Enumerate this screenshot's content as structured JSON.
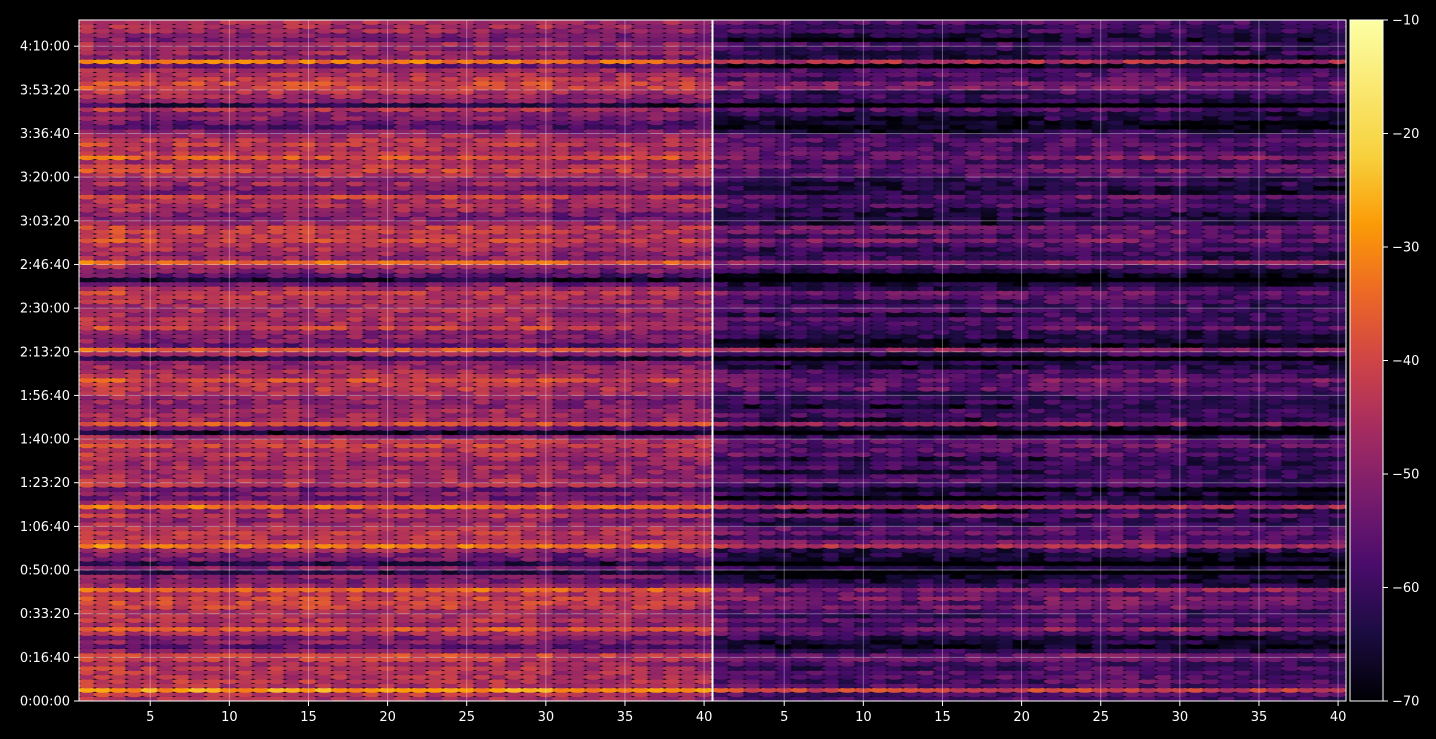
{
  "chart_data": {
    "type": "heatmap",
    "title": "",
    "xlabel": "",
    "ylabel": "",
    "colormap": "inferno",
    "background": "#000000",
    "grid": true,
    "colorbar": {
      "range": [
        -70,
        -10
      ],
      "ticks": [
        -70,
        -60,
        -50,
        -40,
        -30,
        -20,
        -10
      ],
      "tick_labels": [
        "−70",
        "−60",
        "−50",
        "−40",
        "−30",
        "−20",
        "−10"
      ]
    },
    "time_range_seconds": [
      0,
      15600
    ],
    "y_ticks_seconds": [
      0,
      1000,
      2000,
      3000,
      4000,
      5000,
      6000,
      7000,
      8000,
      9000,
      10000,
      11000,
      12000,
      13000,
      14000,
      15000
    ],
    "y_tick_labels": [
      "0:00:00",
      "0:16:40",
      "0:33:20",
      "0:50:00",
      "1:06:40",
      "1:23:20",
      "1:40:00",
      "1:56:40",
      "2:13:20",
      "2:30:00",
      "2:46:40",
      "3:03:20",
      "3:20:00",
      "3:36:40",
      "3:53:20",
      "4:10:00"
    ],
    "panels": [
      {
        "name": "left",
        "x_range": [
          1,
          40
        ],
        "x_ticks": [
          5,
          10,
          15,
          20,
          25,
          30,
          35,
          40
        ],
        "x_tick_labels": [
          "5",
          "10",
          "15",
          "20",
          "25",
          "30",
          "35",
          "40"
        ],
        "level_offset_db": 0
      },
      {
        "name": "right",
        "x_range": [
          1,
          40
        ],
        "x_ticks": [
          5,
          10,
          15,
          20,
          25,
          30,
          35,
          40
        ],
        "x_tick_labels": [
          "5",
          "10",
          "15",
          "20",
          "25",
          "30",
          "35",
          "40"
        ],
        "level_offset_db": -12
      }
    ],
    "strong_bands_seconds": [
      230,
      1030,
      1630,
      2530,
      3530,
      4430,
      6330,
      8030,
      10030,
      10830,
      11530,
      12430,
      14630
    ],
    "very_strong_bands_seconds": [
      4930,
      8030,
      14630
    ]
  }
}
